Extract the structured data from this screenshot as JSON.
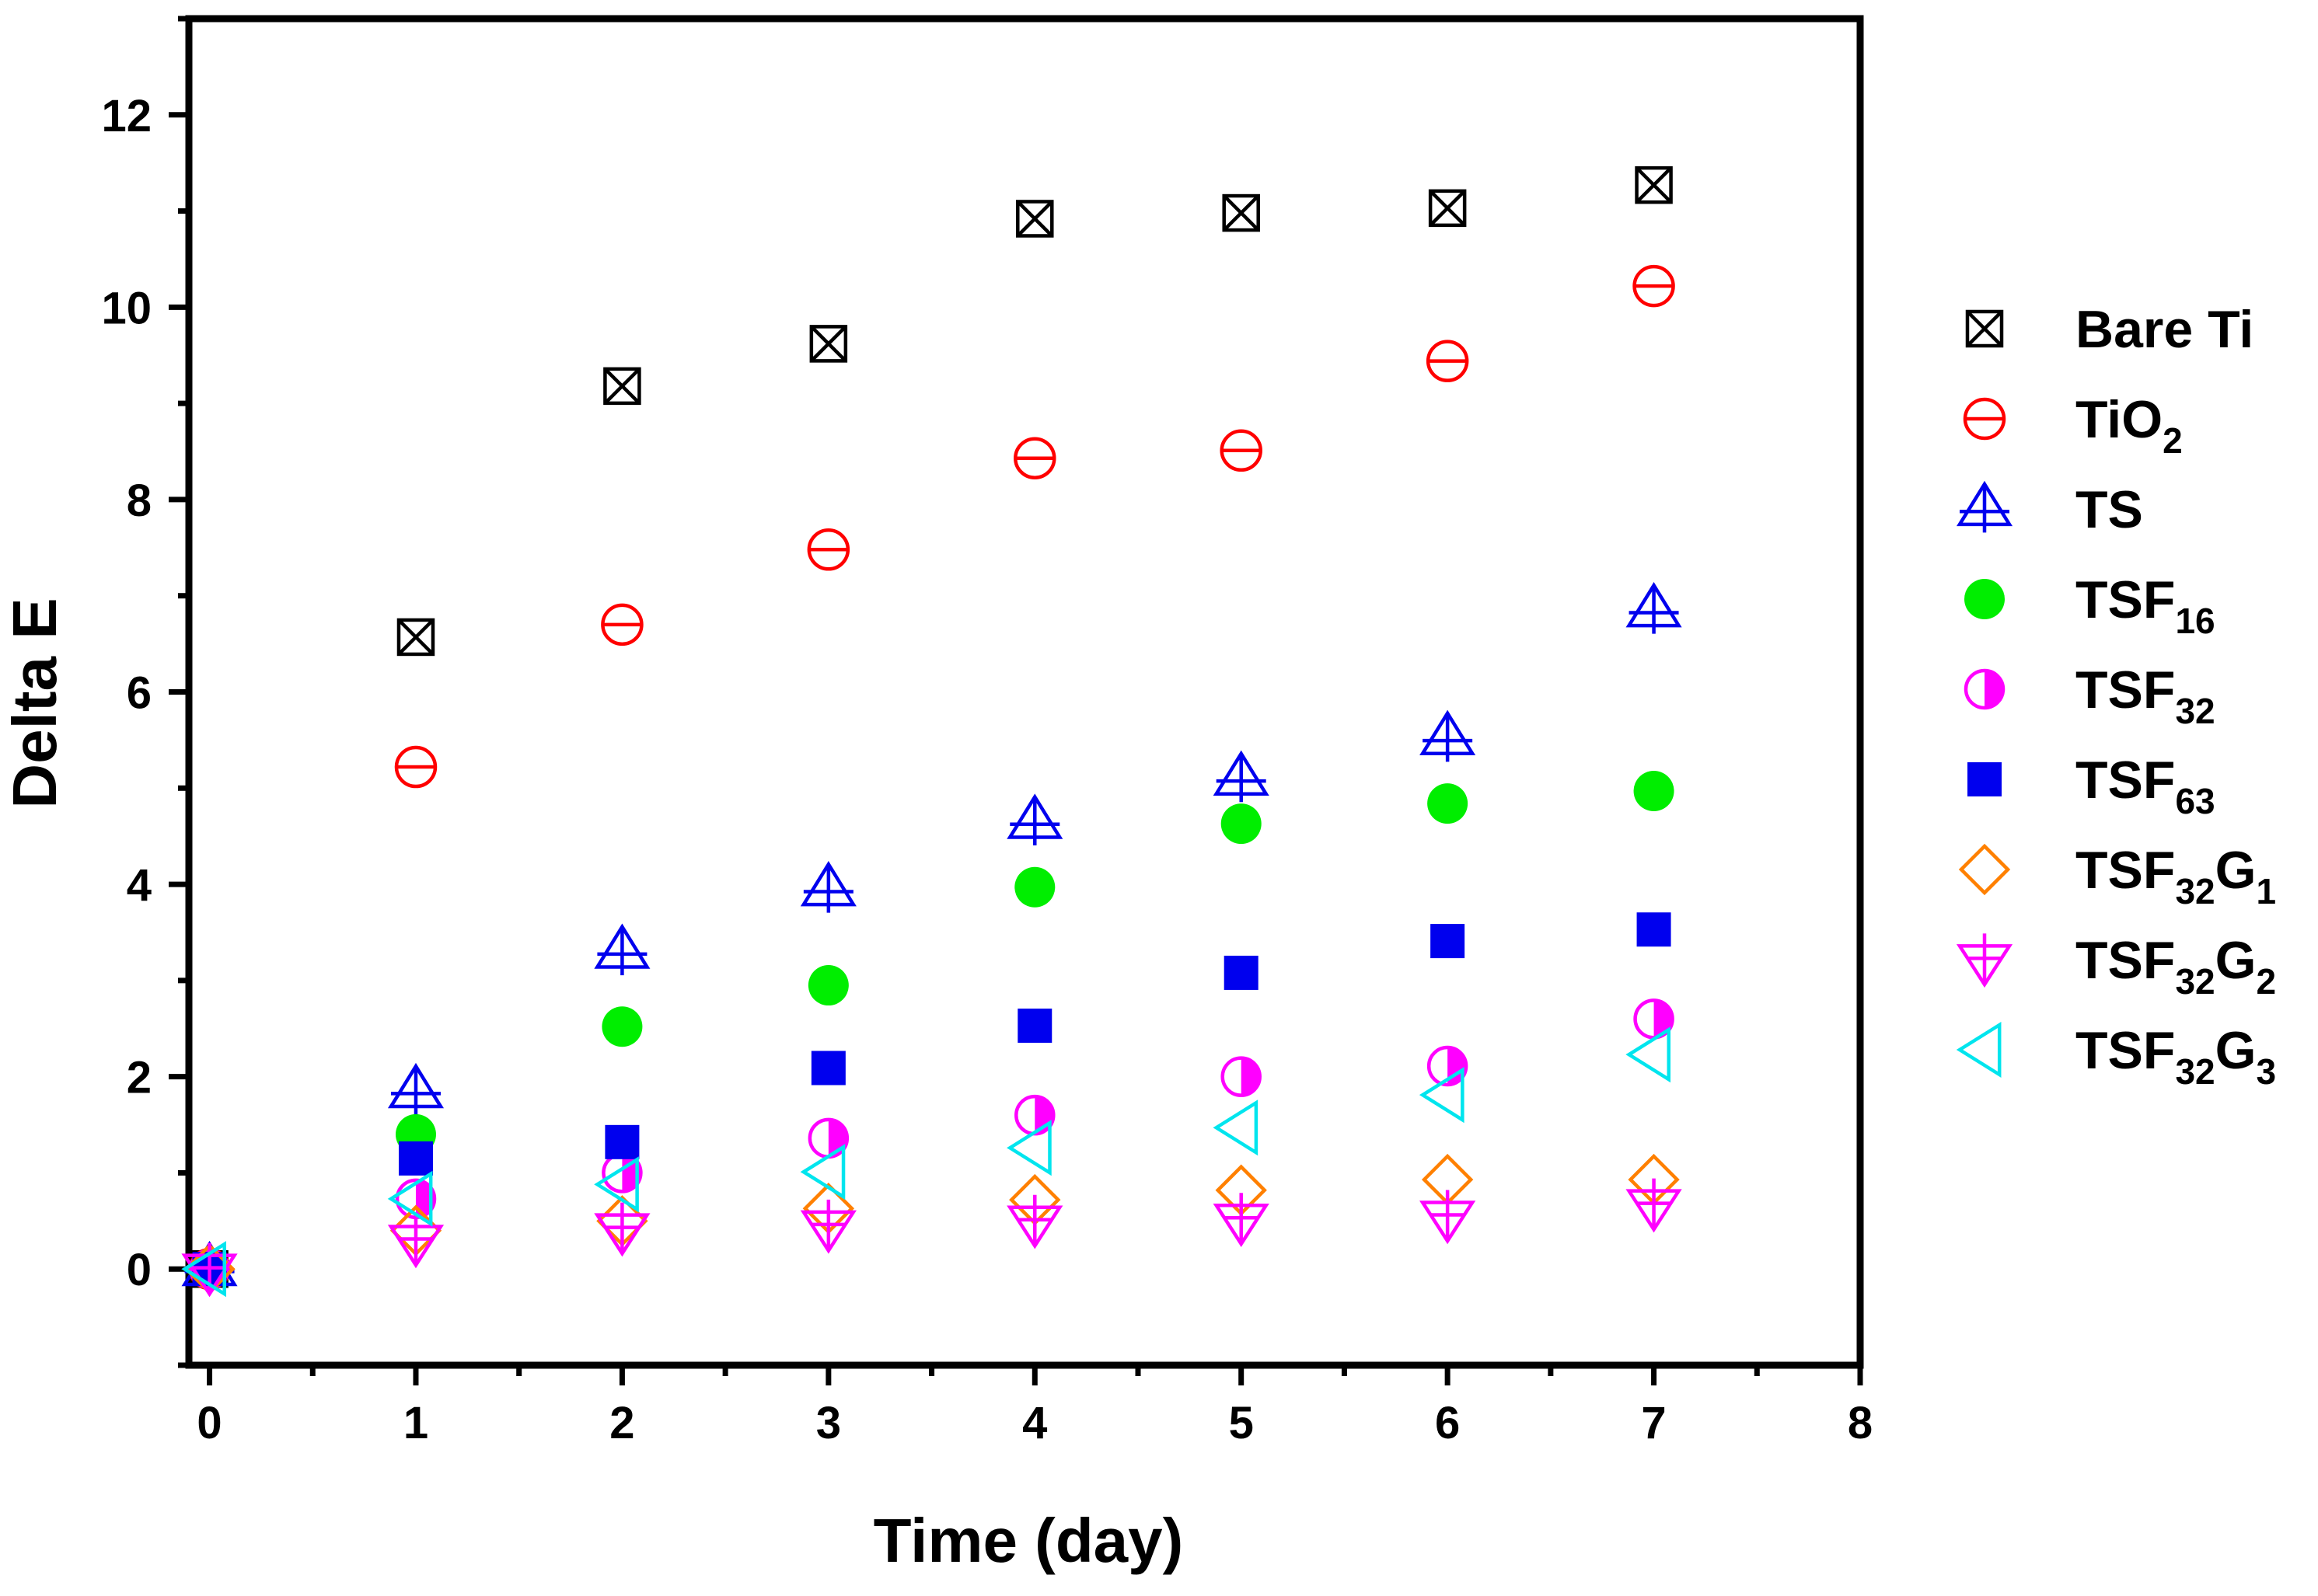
{
  "chart_data": {
    "type": "scatter",
    "xlabel": "Time (day)",
    "ylabel": "Delta E",
    "xlim": [
      -0.1,
      8
    ],
    "ylim": [
      -1,
      13
    ],
    "xticks": [
      "0",
      "1",
      "2",
      "3",
      "4",
      "5",
      "6",
      "7",
      "8"
    ],
    "yticks": [
      "0",
      "2",
      "4",
      "6",
      "8",
      "10",
      "12"
    ],
    "grid": false,
    "legend_position": "right",
    "x": [
      0,
      1,
      2,
      3,
      4,
      5,
      6,
      7
    ],
    "series": [
      {
        "name": "Bare Ti",
        "label_main": "Bare Ti",
        "sub1": "",
        "mid": "",
        "sub2": "",
        "marker": "boxed-x",
        "color": "#000000",
        "values": [
          0,
          6.57,
          9.18,
          9.62,
          10.92,
          10.98,
          11.03,
          11.27
        ]
      },
      {
        "name": "TiO2",
        "label_main": "TiO",
        "sub1": "2",
        "mid": "",
        "sub2": "",
        "marker": "circle-bar",
        "color": "#ff0000",
        "values": [
          0,
          5.22,
          6.7,
          7.48,
          8.43,
          8.51,
          9.44,
          10.22
        ]
      },
      {
        "name": "TS",
        "label_main": "TS",
        "sub1": "",
        "mid": "",
        "sub2": "",
        "marker": "triangle-plus",
        "color": "#0000ee",
        "values": [
          0,
          1.85,
          3.3,
          3.95,
          4.65,
          5.1,
          5.52,
          6.85
        ]
      },
      {
        "name": "TSF16",
        "label_main": "TSF",
        "sub1": "16",
        "mid": "",
        "sub2": "",
        "marker": "filled-circle",
        "color": "#00ee00",
        "values": [
          0,
          1.4,
          2.52,
          2.95,
          3.97,
          4.63,
          4.84,
          4.97
        ]
      },
      {
        "name": "TSF32",
        "label_main": "TSF",
        "sub1": "32",
        "mid": "",
        "sub2": "",
        "marker": "half-circle",
        "color": "#ff00ff",
        "values": [
          0,
          0.73,
          1.0,
          1.36,
          1.6,
          2.0,
          2.11,
          2.6
        ]
      },
      {
        "name": "TSF63",
        "label_main": "TSF",
        "sub1": "63",
        "mid": "",
        "sub2": "",
        "marker": "filled-square",
        "color": "#0000ee",
        "values": [
          0,
          1.15,
          1.32,
          2.09,
          2.53,
          3.08,
          3.41,
          3.53
        ]
      },
      {
        "name": "TSF32G1",
        "label_main": "TSF",
        "sub1": "32",
        "mid": "G",
        "sub2": "1",
        "marker": "diamond",
        "color": "#ff8000",
        "values": [
          0,
          0.4,
          0.5,
          0.63,
          0.72,
          0.82,
          0.93,
          0.93
        ]
      },
      {
        "name": "TSF32G2",
        "label_main": "TSF",
        "sub1": "32",
        "mid": "G",
        "sub2": "2",
        "marker": "down-triangle-plus",
        "color": "#ff00ff",
        "values": [
          0,
          0.3,
          0.42,
          0.45,
          0.5,
          0.52,
          0.55,
          0.67
        ]
      },
      {
        "name": "TSF32G3",
        "label_main": "TSF",
        "sub1": "32",
        "mid": "G",
        "sub2": "3",
        "marker": "left-triangle",
        "color": "#00e5ee",
        "values": [
          0,
          0.73,
          0.88,
          1.01,
          1.26,
          1.47,
          1.81,
          2.23
        ]
      }
    ]
  }
}
